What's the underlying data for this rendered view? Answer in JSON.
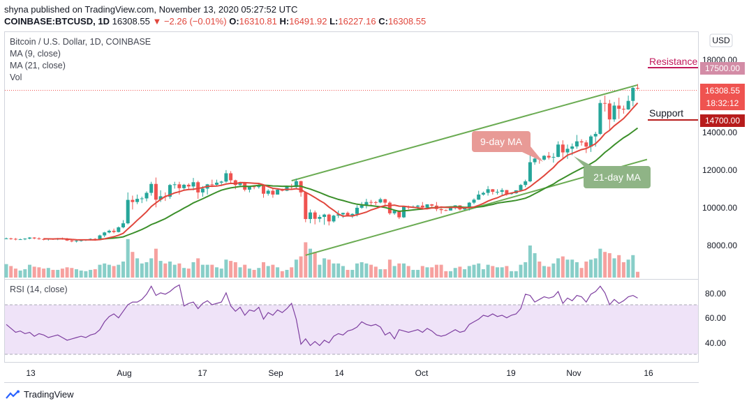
{
  "header": {
    "published": "shyna published on TradingView.com, November 13, 2020 05:27:52 UTC",
    "symbol": "COINBASE:BTCUSD, 1D",
    "last": "16308.55",
    "arrow": "▼",
    "change": "−2.26 (−0.01%)",
    "o_label": "O:",
    "o": "16310.81",
    "h_label": "H:",
    "h": "16491.92",
    "l_label": "L:",
    "l": "16227.16",
    "c_label": "C:",
    "c": "16308.55"
  },
  "legend": {
    "title": "Bitcoin / U.S. Dollar, 1D, COINBASE",
    "ma9": "MA (9, close)",
    "ma21": "MA (21, close)",
    "vol": "Vol",
    "rsi": "RSI (14, close)"
  },
  "annotations": {
    "resistance": "Resistance",
    "support": "Support",
    "ma9_label": "9-day MA",
    "ma21_label": "21-day MA"
  },
  "price_axis": {
    "currency": "USD",
    "ticks": [
      "18000.00",
      "12000.00",
      "10000.00",
      "8000.00"
    ],
    "tick_14000": "14000.00",
    "resistance_tag": "17500.00",
    "last_tag": "16308.55",
    "countdown_tag": "18:32:12",
    "support_tag": "14700.00"
  },
  "rsi_axis": {
    "ticks": [
      "80.00",
      "60.00",
      "40.00"
    ]
  },
  "time_axis": {
    "ticks": [
      "13",
      "Aug",
      "17",
      "Sep",
      "14",
      "Oct",
      "19",
      "Nov",
      "16"
    ]
  },
  "footer": {
    "brand": "TradingView"
  },
  "colors": {
    "up": "#26a69a",
    "down": "#ef5350",
    "ma9": "#e0463c",
    "ma21": "#3b8f2a",
    "trend": "#6aab52",
    "resistance": "#c2185b",
    "support_tag": "#b71c1c",
    "rsi": "#7e3fa0",
    "rsi_band": "#efe3f8"
  },
  "chart_data": {
    "type": "candlestick",
    "title": "Bitcoin / U.S. Dollar, 1D, COINBASE",
    "y_range": [
      7400,
      18900
    ],
    "rsi_range": [
      28,
      90
    ],
    "resistance": 17500,
    "support": 14700,
    "trendline_upper": [
      [
        "2020-08-31",
        11950
      ],
      [
        "2020-11-13",
        16450
      ]
    ],
    "trendline_lower": [
      [
        "2020-09-03",
        8450
      ],
      [
        "2020-11-15",
        12950
      ]
    ],
    "candles": [
      [
        "2020-07-01",
        9230,
        9280,
        9200,
        9240,
        0.21
      ],
      [
        "2020-07-02",
        9240,
        9270,
        9180,
        9220,
        0.18
      ],
      [
        "2020-07-03",
        9220,
        9260,
        9150,
        9190,
        0.14
      ],
      [
        "2020-07-04",
        9190,
        9230,
        9170,
        9200,
        0.11
      ],
      [
        "2020-07-05",
        9200,
        9250,
        9160,
        9230,
        0.13
      ],
      [
        "2020-07-06",
        9230,
        9300,
        9200,
        9280,
        0.2
      ],
      [
        "2020-07-07",
        9280,
        9300,
        9200,
        9240,
        0.17
      ],
      [
        "2020-07-08",
        9240,
        9290,
        9180,
        9210,
        0.16
      ],
      [
        "2020-07-09",
        9210,
        9250,
        9150,
        9190,
        0.14
      ],
      [
        "2020-07-10",
        9190,
        9240,
        9140,
        9220,
        0.15
      ],
      [
        "2020-07-11",
        9220,
        9240,
        9170,
        9190,
        0.12
      ],
      [
        "2020-07-12",
        9190,
        9260,
        9160,
        9240,
        0.12
      ],
      [
        "2020-07-13",
        9240,
        9280,
        9180,
        9200,
        0.14
      ],
      [
        "2020-07-14",
        9200,
        9260,
        9120,
        9140,
        0.16
      ],
      [
        "2020-07-15",
        9140,
        9200,
        9060,
        9100,
        0.15
      ],
      [
        "2020-07-16",
        9100,
        9160,
        9050,
        9130,
        0.13
      ],
      [
        "2020-07-17",
        9130,
        9180,
        9090,
        9150,
        0.11
      ],
      [
        "2020-07-18",
        9150,
        9200,
        9120,
        9180,
        0.1
      ],
      [
        "2020-07-19",
        9180,
        9240,
        9140,
        9220,
        0.12
      ],
      [
        "2020-07-20",
        9220,
        9250,
        9130,
        9160,
        0.13
      ],
      [
        "2020-07-21",
        9160,
        9420,
        9150,
        9380,
        0.2
      ],
      [
        "2020-07-22",
        9380,
        9550,
        9300,
        9520,
        0.22
      ],
      [
        "2020-07-23",
        9520,
        9650,
        9480,
        9600,
        0.2
      ],
      [
        "2020-07-24",
        9600,
        9700,
        9480,
        9540,
        0.18
      ],
      [
        "2020-07-25",
        9540,
        9800,
        9520,
        9760,
        0.2
      ],
      [
        "2020-07-26",
        9760,
        10100,
        9720,
        9950,
        0.25
      ],
      [
        "2020-07-27",
        9950,
        11400,
        9900,
        11050,
        0.6
      ],
      [
        "2020-07-28",
        11050,
        11250,
        10600,
        10950,
        0.4
      ],
      [
        "2020-07-29",
        10950,
        11300,
        10850,
        11100,
        0.3
      ],
      [
        "2020-07-30",
        11100,
        11200,
        10900,
        11120,
        0.22
      ],
      [
        "2020-07-31",
        11120,
        11450,
        10980,
        11380,
        0.24
      ],
      [
        "2020-08-01",
        11380,
        11900,
        11250,
        11800,
        0.3
      ],
      [
        "2020-08-02",
        11800,
        12100,
        10700,
        11060,
        0.45
      ],
      [
        "2020-08-03",
        11060,
        11500,
        10950,
        11220,
        0.26
      ],
      [
        "2020-08-04",
        11220,
        11400,
        11000,
        11200,
        0.22
      ],
      [
        "2020-08-05",
        11200,
        11800,
        11100,
        11750,
        0.25
      ],
      [
        "2020-08-06",
        11750,
        11900,
        11580,
        11780,
        0.2
      ],
      [
        "2020-08-07",
        11780,
        11900,
        11300,
        11600,
        0.22
      ],
      [
        "2020-08-08",
        11600,
        11800,
        11520,
        11760,
        0.15
      ],
      [
        "2020-08-09",
        11760,
        11830,
        11550,
        11680,
        0.14
      ],
      [
        "2020-08-10",
        11680,
        12080,
        11500,
        11880,
        0.24
      ],
      [
        "2020-08-11",
        11880,
        11950,
        11100,
        11400,
        0.3
      ],
      [
        "2020-08-12",
        11400,
        11700,
        11200,
        11580,
        0.2
      ],
      [
        "2020-08-13",
        11580,
        11800,
        11300,
        11780,
        0.2
      ],
      [
        "2020-08-14",
        11780,
        12000,
        11650,
        11760,
        0.2
      ],
      [
        "2020-08-15",
        11760,
        12000,
        11700,
        11860,
        0.16
      ],
      [
        "2020-08-16",
        11860,
        11950,
        11700,
        11910,
        0.14
      ],
      [
        "2020-08-17",
        11910,
        12450,
        11850,
        12300,
        0.28
      ],
      [
        "2020-08-18",
        12300,
        12400,
        11800,
        11970,
        0.26
      ],
      [
        "2020-08-19",
        11970,
        12000,
        11550,
        11750,
        0.24
      ],
      [
        "2020-08-20",
        11750,
        11900,
        11650,
        11860,
        0.16
      ],
      [
        "2020-08-21",
        11860,
        11890,
        11450,
        11530,
        0.2
      ],
      [
        "2020-08-22",
        11530,
        11700,
        11400,
        11680,
        0.14
      ],
      [
        "2020-08-23",
        11680,
        11720,
        11550,
        11650,
        0.12
      ],
      [
        "2020-08-24",
        11650,
        11800,
        11580,
        11760,
        0.15
      ],
      [
        "2020-08-25",
        11760,
        11780,
        11150,
        11340,
        0.24
      ],
      [
        "2020-08-26",
        11340,
        11550,
        11250,
        11480,
        0.18
      ],
      [
        "2020-08-27",
        11480,
        11580,
        11150,
        11300,
        0.2
      ],
      [
        "2020-08-28",
        11300,
        11550,
        11300,
        11530,
        0.16
      ],
      [
        "2020-08-29",
        11530,
        11580,
        11450,
        11480,
        0.1
      ],
      [
        "2020-08-30",
        11480,
        11720,
        11460,
        11700,
        0.12
      ],
      [
        "2020-08-31",
        11700,
        11800,
        11550,
        11650,
        0.16
      ],
      [
        "2020-09-01",
        11650,
        12050,
        11600,
        11930,
        0.28
      ],
      [
        "2020-09-02",
        11930,
        11950,
        11200,
        11400,
        0.33
      ],
      [
        "2020-09-03",
        11400,
        11450,
        10000,
        10150,
        0.55
      ],
      [
        "2020-09-04",
        10150,
        10600,
        9950,
        10460,
        0.45
      ],
      [
        "2020-09-05",
        10460,
        10550,
        9900,
        10160,
        0.4
      ],
      [
        "2020-09-06",
        10160,
        10350,
        10000,
        10250,
        0.2
      ],
      [
        "2020-09-07",
        10250,
        10400,
        9880,
        10360,
        0.3
      ],
      [
        "2020-09-08",
        10360,
        10400,
        9850,
        10040,
        0.28
      ],
      [
        "2020-09-09",
        10040,
        10350,
        9980,
        10310,
        0.22
      ],
      [
        "2020-09-10",
        10310,
        10550,
        10200,
        10370,
        0.22
      ],
      [
        "2020-09-11",
        10370,
        10450,
        10200,
        10440,
        0.18
      ],
      [
        "2020-09-12",
        10440,
        10500,
        10300,
        10330,
        0.12
      ],
      [
        "2020-09-13",
        10330,
        10420,
        10200,
        10390,
        0.12
      ],
      [
        "2020-09-14",
        10390,
        10800,
        10270,
        10680,
        0.22
      ],
      [
        "2020-09-15",
        10680,
        10950,
        10630,
        10790,
        0.24
      ],
      [
        "2020-09-16",
        10790,
        11100,
        10650,
        10950,
        0.22
      ],
      [
        "2020-09-17",
        10950,
        11050,
        10750,
        10940,
        0.2
      ],
      [
        "2020-09-18",
        10940,
        11000,
        10800,
        10930,
        0.17
      ],
      [
        "2020-09-19",
        10930,
        11150,
        10890,
        11080,
        0.13
      ],
      [
        "2020-09-20",
        11080,
        11100,
        10800,
        10920,
        0.13
      ],
      [
        "2020-09-21",
        10920,
        10980,
        10350,
        10420,
        0.28
      ],
      [
        "2020-09-22",
        10420,
        10580,
        10350,
        10540,
        0.18
      ],
      [
        "2020-09-23",
        10540,
        10560,
        10150,
        10230,
        0.22
      ],
      [
        "2020-09-24",
        10230,
        10750,
        10200,
        10740,
        0.22
      ],
      [
        "2020-09-25",
        10740,
        10780,
        10600,
        10690,
        0.18
      ],
      [
        "2020-09-26",
        10690,
        10790,
        10660,
        10730,
        0.12
      ],
      [
        "2020-09-27",
        10730,
        10810,
        10620,
        10780,
        0.12
      ],
      [
        "2020-09-28",
        10780,
        10950,
        10650,
        10690,
        0.18
      ],
      [
        "2020-09-29",
        10690,
        10850,
        10640,
        10840,
        0.16
      ],
      [
        "2020-09-30",
        10840,
        10860,
        10700,
        10780,
        0.16
      ],
      [
        "2020-10-01",
        10780,
        10950,
        10520,
        10620,
        0.2
      ],
      [
        "2020-10-02",
        10620,
        10650,
        10400,
        10570,
        0.2
      ],
      [
        "2020-10-03",
        10570,
        10600,
        10520,
        10550,
        0.1
      ],
      [
        "2020-10-04",
        10550,
        10700,
        10550,
        10670,
        0.1
      ],
      [
        "2020-10-05",
        10670,
        10800,
        10600,
        10790,
        0.15
      ],
      [
        "2020-10-06",
        10790,
        10800,
        10550,
        10600,
        0.17
      ],
      [
        "2020-10-07",
        10600,
        10690,
        10580,
        10670,
        0.13
      ],
      [
        "2020-10-08",
        10670,
        10950,
        10550,
        10920,
        0.18
      ],
      [
        "2020-10-09",
        10920,
        11120,
        10850,
        11060,
        0.2
      ],
      [
        "2020-10-10",
        11060,
        11480,
        11050,
        11300,
        0.22
      ],
      [
        "2020-10-11",
        11300,
        11440,
        11250,
        11380,
        0.13
      ],
      [
        "2020-10-12",
        11380,
        11700,
        11250,
        11550,
        0.2
      ],
      [
        "2020-10-13",
        11550,
        11560,
        11300,
        11430,
        0.18
      ],
      [
        "2020-10-14",
        11430,
        11550,
        11300,
        11430,
        0.16
      ],
      [
        "2020-10-15",
        11430,
        11600,
        11280,
        11510,
        0.16
      ],
      [
        "2020-10-16",
        11510,
        11520,
        11250,
        11320,
        0.18
      ],
      [
        "2020-10-17",
        11320,
        11400,
        11300,
        11360,
        0.1
      ],
      [
        "2020-10-18",
        11360,
        11500,
        11340,
        11500,
        0.1
      ],
      [
        "2020-10-19",
        11500,
        11800,
        11450,
        11750,
        0.2
      ],
      [
        "2020-10-20",
        11750,
        12000,
        11650,
        11920,
        0.24
      ],
      [
        "2020-10-21",
        11920,
        13200,
        11880,
        12820,
        0.5
      ],
      [
        "2020-10-22",
        12820,
        13200,
        12700,
        12990,
        0.38
      ],
      [
        "2020-10-23",
        12990,
        13030,
        12750,
        12940,
        0.25
      ],
      [
        "2020-10-24",
        12940,
        13150,
        12900,
        13120,
        0.18
      ],
      [
        "2020-10-25",
        13120,
        13300,
        12950,
        13040,
        0.17
      ],
      [
        "2020-10-26",
        13040,
        13250,
        12800,
        13070,
        0.22
      ],
      [
        "2020-10-27",
        13070,
        13800,
        13050,
        13650,
        0.3
      ],
      [
        "2020-10-28",
        13650,
        13850,
        12950,
        13280,
        0.33
      ],
      [
        "2020-10-29",
        13280,
        13650,
        12980,
        13450,
        0.28
      ],
      [
        "2020-10-30",
        13450,
        13700,
        13150,
        13560,
        0.28
      ],
      [
        "2020-10-31",
        13560,
        14100,
        13450,
        13800,
        0.24
      ],
      [
        "2020-11-01",
        13800,
        13900,
        13600,
        13750,
        0.15
      ],
      [
        "2020-11-02",
        13750,
        13850,
        13250,
        13550,
        0.25
      ],
      [
        "2020-11-03",
        13550,
        14100,
        13300,
        14030,
        0.28
      ],
      [
        "2020-11-04",
        14030,
        14250,
        13550,
        14150,
        0.3
      ],
      [
        "2020-11-05",
        14150,
        15750,
        14100,
        15600,
        0.45
      ],
      [
        "2020-11-06",
        15600,
        15950,
        15200,
        15580,
        0.4
      ],
      [
        "2020-11-07",
        15580,
        15750,
        14350,
        14830,
        0.38
      ],
      [
        "2020-11-08",
        14830,
        15650,
        14720,
        15480,
        0.3
      ],
      [
        "2020-11-09",
        15480,
        15850,
        14850,
        15330,
        0.35
      ],
      [
        "2020-11-10",
        15330,
        15480,
        15100,
        15300,
        0.24
      ],
      [
        "2020-11-11",
        15300,
        15950,
        15280,
        15700,
        0.28
      ],
      [
        "2020-11-12",
        15700,
        16350,
        15450,
        16310,
        0.35
      ],
      [
        "2020-11-13",
        16310,
        16490,
        16230,
        16308,
        0.09
      ]
    ],
    "rsi": [
      56,
      53,
      50,
      51,
      49,
      50,
      47,
      49,
      48,
      46,
      47,
      48,
      46,
      44,
      45,
      46,
      47,
      46,
      48,
      49,
      52,
      58,
      62,
      64,
      61,
      66,
      71,
      73,
      73,
      75,
      79,
      85,
      78,
      80,
      79,
      81,
      84,
      86,
      70,
      72,
      73,
      68,
      72,
      74,
      71,
      72,
      73,
      80,
      70,
      66,
      69,
      63,
      67,
      66,
      69,
      60,
      65,
      63,
      67,
      65,
      68,
      72,
      60,
      41,
      45,
      40,
      43,
      40,
      44,
      42,
      47,
      49,
      48,
      51,
      52,
      54,
      58,
      56,
      55,
      56,
      54,
      48,
      50,
      45,
      52,
      51,
      50,
      51,
      52,
      50,
      53,
      51,
      48,
      47,
      48,
      50,
      52,
      50,
      51,
      56,
      58,
      60,
      63,
      62,
      64,
      62,
      63,
      61,
      63,
      64,
      68,
      79,
      78,
      73,
      75,
      77,
      76,
      77,
      81,
      72,
      76,
      74,
      78,
      77,
      73,
      79,
      81,
      85,
      80,
      71,
      75,
      72,
      74,
      77,
      78,
      76
    ]
  }
}
